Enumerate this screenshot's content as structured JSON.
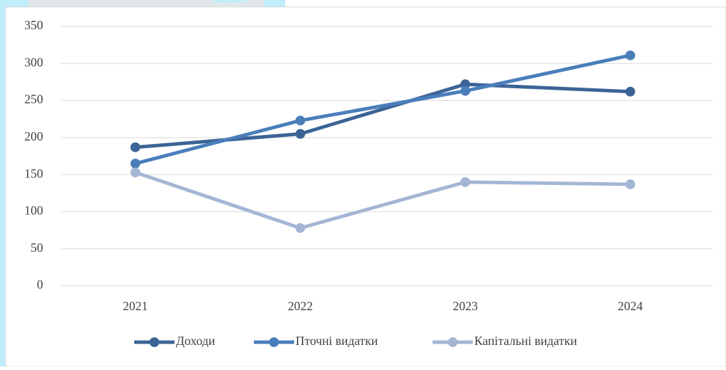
{
  "chart_data": {
    "type": "line",
    "categories": [
      "2021",
      "2022",
      "2023",
      "2024"
    ],
    "series": [
      {
        "name": "Доходи",
        "color": "#3b6496",
        "values": [
          187,
          205,
          272,
          262
        ]
      },
      {
        "name": "Пточні видатки",
        "color": "#4a7ebb",
        "values": [
          165,
          223,
          263,
          311
        ]
      },
      {
        "name": "Капітальні видатки",
        "color": "#a5b6d4",
        "values": [
          153,
          78,
          140,
          137
        ]
      }
    ],
    "ylim": [
      0,
      350
    ],
    "yticks": [
      0,
      50,
      100,
      150,
      200,
      250,
      300,
      350
    ],
    "grid": true,
    "legend": "bottom"
  }
}
